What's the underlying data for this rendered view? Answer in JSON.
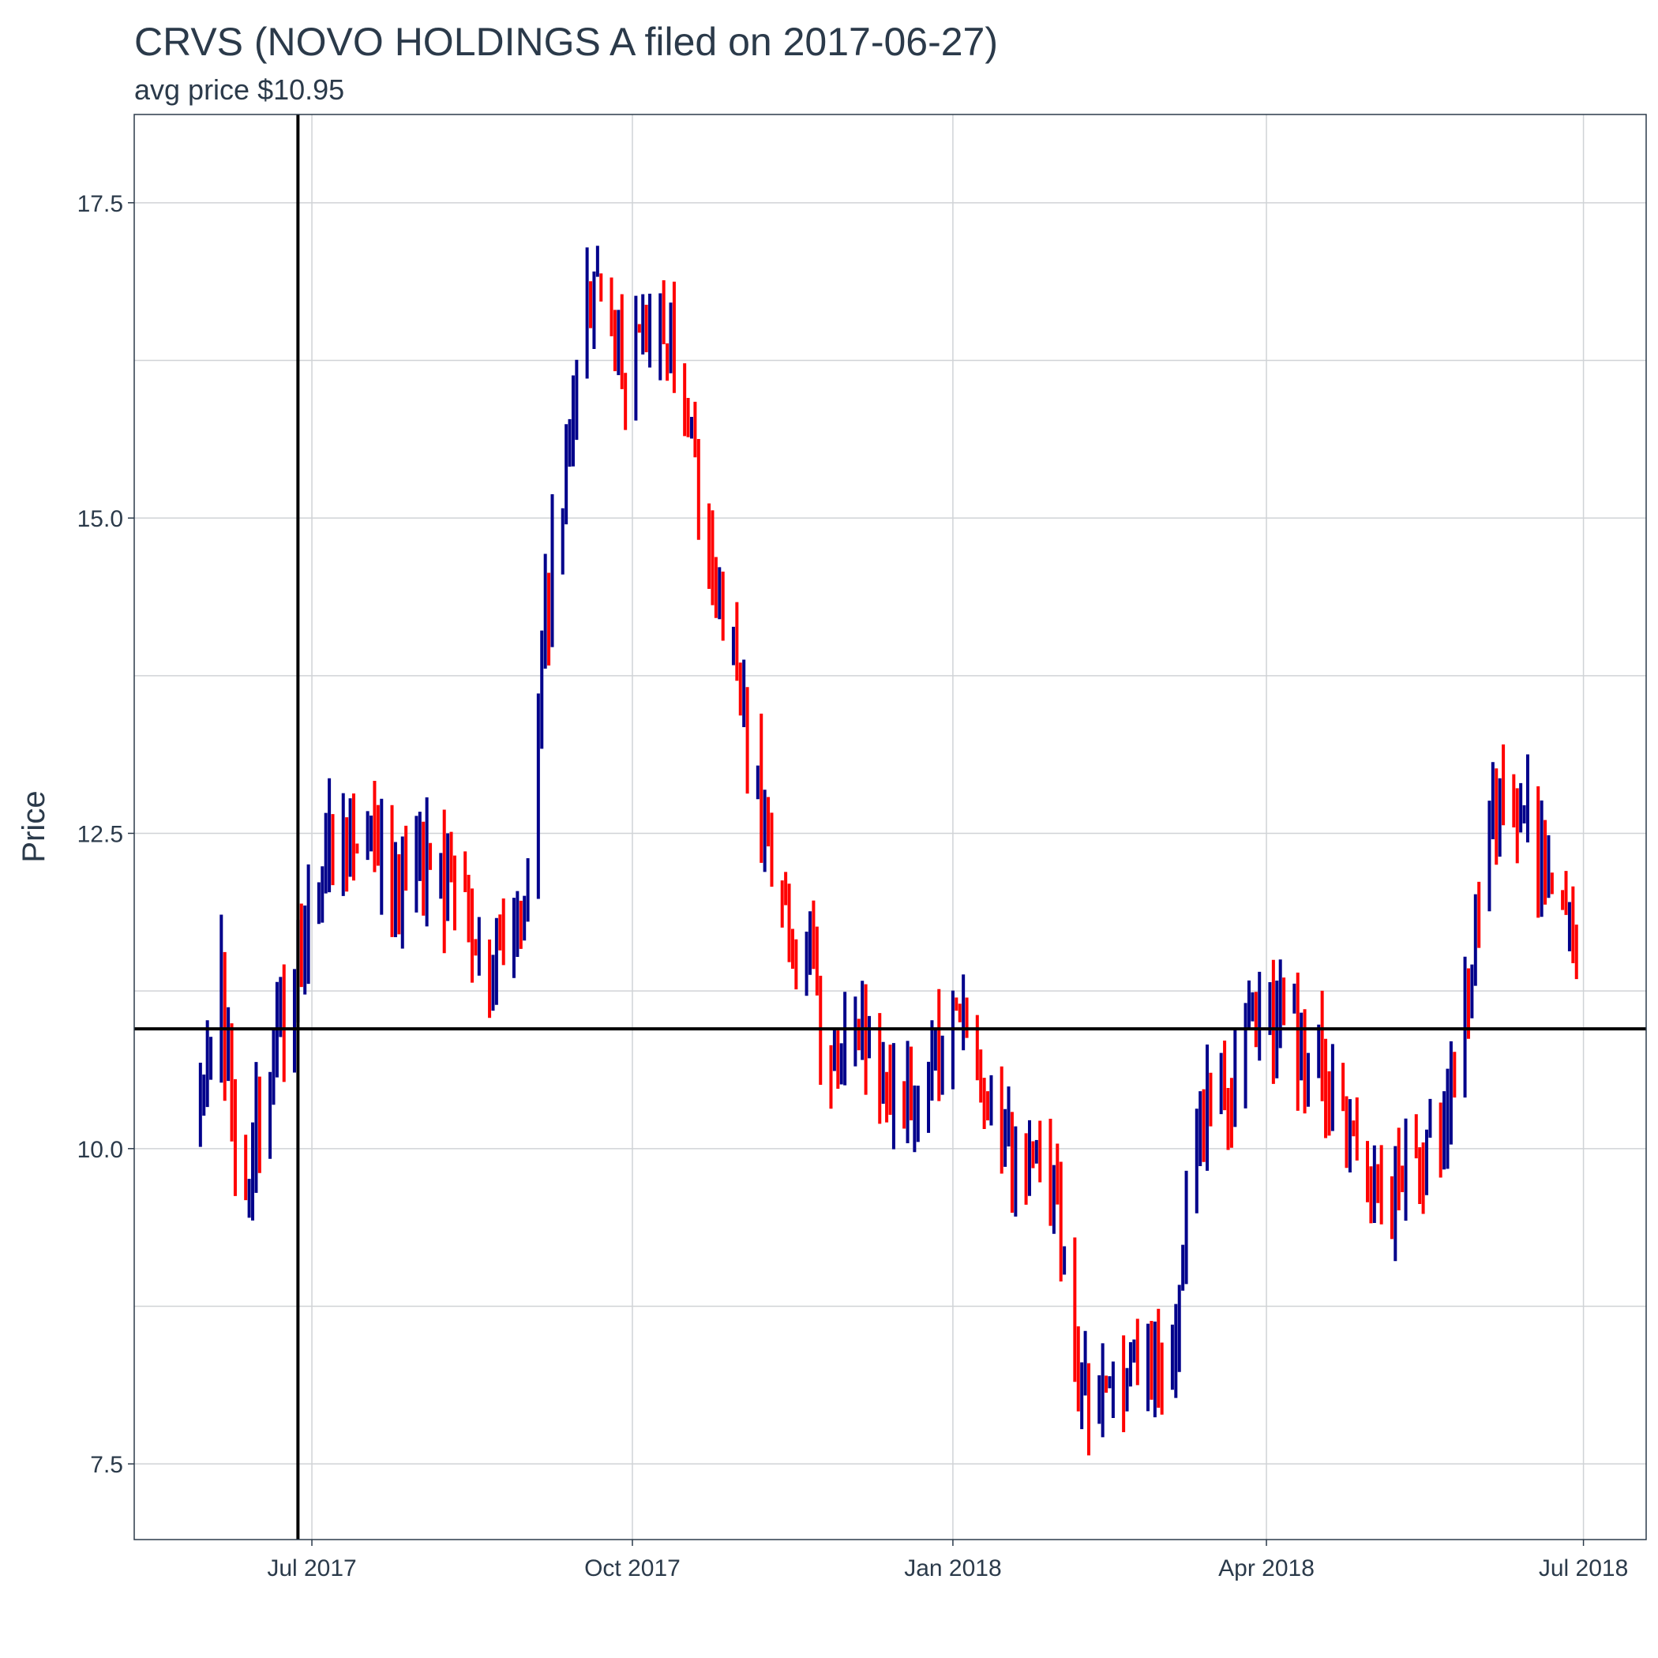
{
  "chart_data": {
    "type": "ohlc",
    "title": "CRVS (NOVO HOLDINGS A filed on 2017-06-27)",
    "subtitle": "avg price $10.95",
    "ylabel": "Price",
    "xlabel": "",
    "ylim": [
      6.9,
      18.2
    ],
    "xlim": [
      "2017-05-11",
      "2018-07-19"
    ],
    "y_ticks": [
      7.5,
      10.0,
      12.5,
      15.0,
      17.5
    ],
    "y_tick_labels": [
      "7.5",
      "10.0",
      "12.5",
      "15.0",
      "17.5"
    ],
    "x_ticks": [
      "2017-07-01",
      "2017-10-01",
      "2018-01-01",
      "2018-04-01",
      "2018-07-01"
    ],
    "x_tick_labels": [
      "Jul 2017",
      "Oct 2017",
      "Jan 2018",
      "Apr 2018",
      "Jul 2018"
    ],
    "reference_lines": {
      "filing_date": "2017-06-27",
      "avg_price": 10.95
    },
    "colors": {
      "up": "#00008b",
      "down": "#ff0000",
      "reference": "#000000",
      "text": "#2b3a4a"
    },
    "grid": true,
    "anchors": [
      [
        "2017-05-30",
        10.2
      ],
      [
        "2017-06-05",
        11.3
      ],
      [
        "2017-06-10",
        9.6
      ],
      [
        "2017-06-15",
        10.1
      ],
      [
        "2017-06-20",
        10.8
      ],
      [
        "2017-06-27",
        11.5
      ],
      [
        "2017-07-05",
        12.4
      ],
      [
        "2017-07-15",
        12.6
      ],
      [
        "2017-07-25",
        12.2
      ],
      [
        "2017-08-05",
        12.2
      ],
      [
        "2017-08-15",
        12.0
      ],
      [
        "2017-08-20",
        11.5
      ],
      [
        "2017-08-28",
        12.0
      ],
      [
        "2017-09-01",
        12.2
      ],
      [
        "2017-09-05",
        14.0
      ],
      [
        "2017-09-12",
        15.5
      ],
      [
        "2017-09-20",
        17.0
      ],
      [
        "2017-09-28",
        16.2
      ],
      [
        "2017-10-05",
        16.6
      ],
      [
        "2017-10-12",
        16.3
      ],
      [
        "2017-10-20",
        15.2
      ],
      [
        "2017-10-28",
        14.2
      ],
      [
        "2017-11-05",
        13.0
      ],
      [
        "2017-11-12",
        12.0
      ],
      [
        "2017-11-20",
        11.6
      ],
      [
        "2017-11-26",
        10.6
      ],
      [
        "2017-12-05",
        11.0
      ],
      [
        "2017-12-15",
        10.4
      ],
      [
        "2017-12-25",
        10.6
      ],
      [
        "2018-01-05",
        11.0
      ],
      [
        "2018-01-15",
        10.0
      ],
      [
        "2018-01-25",
        9.9
      ],
      [
        "2018-02-01",
        9.2
      ],
      [
        "2018-02-05",
        8.2
      ],
      [
        "2018-02-15",
        8.0
      ],
      [
        "2018-02-25",
        8.2
      ],
      [
        "2018-03-05",
        8.5
      ],
      [
        "2018-03-12",
        10.2
      ],
      [
        "2018-03-20",
        10.3
      ],
      [
        "2018-03-28",
        11.0
      ],
      [
        "2018-04-05",
        11.1
      ],
      [
        "2018-04-15",
        10.7
      ],
      [
        "2018-04-25",
        10.1
      ],
      [
        "2018-05-05",
        9.5
      ],
      [
        "2018-05-15",
        9.9
      ],
      [
        "2018-05-20",
        10.0
      ],
      [
        "2018-05-28",
        11.2
      ],
      [
        "2018-06-05",
        12.8
      ],
      [
        "2018-06-15",
        12.6
      ],
      [
        "2018-06-22",
        12.1
      ],
      [
        "2018-06-29",
        11.6
      ]
    ]
  }
}
